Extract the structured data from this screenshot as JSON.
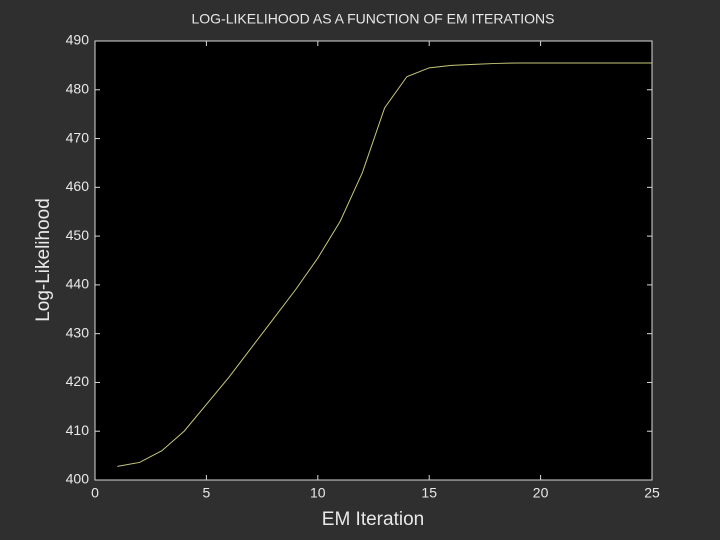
{
  "chart_data": {
    "type": "line",
    "title": "LOG-LIKELIHOOD AS A FUNCTION OF EM ITERATIONS",
    "xlabel": "EM Iteration",
    "ylabel": "Log-Likelihood",
    "x": [
      1,
      2,
      3,
      4,
      5,
      6,
      7,
      8,
      9,
      10,
      11,
      12,
      13,
      14,
      15,
      16,
      17,
      18,
      19,
      20,
      21,
      22,
      23,
      24,
      25
    ],
    "series": [
      {
        "name": "Log-Likelihood",
        "color": "#c8c87a",
        "values": [
          402.8,
          403.6,
          406,
          410,
          415.5,
          421,
          427,
          433,
          439,
          445.5,
          453,
          463,
          476.3,
          482.7,
          484.5,
          485,
          485.2,
          485.4,
          485.5,
          485.5,
          485.5,
          485.5,
          485.5,
          485.5,
          485.5
        ]
      }
    ],
    "xlim": [
      0,
      25
    ],
    "xticks": [
      0,
      5,
      10,
      15,
      20,
      25
    ],
    "ylim": [
      400,
      490
    ],
    "yticks": [
      400,
      410,
      420,
      430,
      440,
      450,
      460,
      470,
      480,
      490
    ],
    "grid": false
  }
}
